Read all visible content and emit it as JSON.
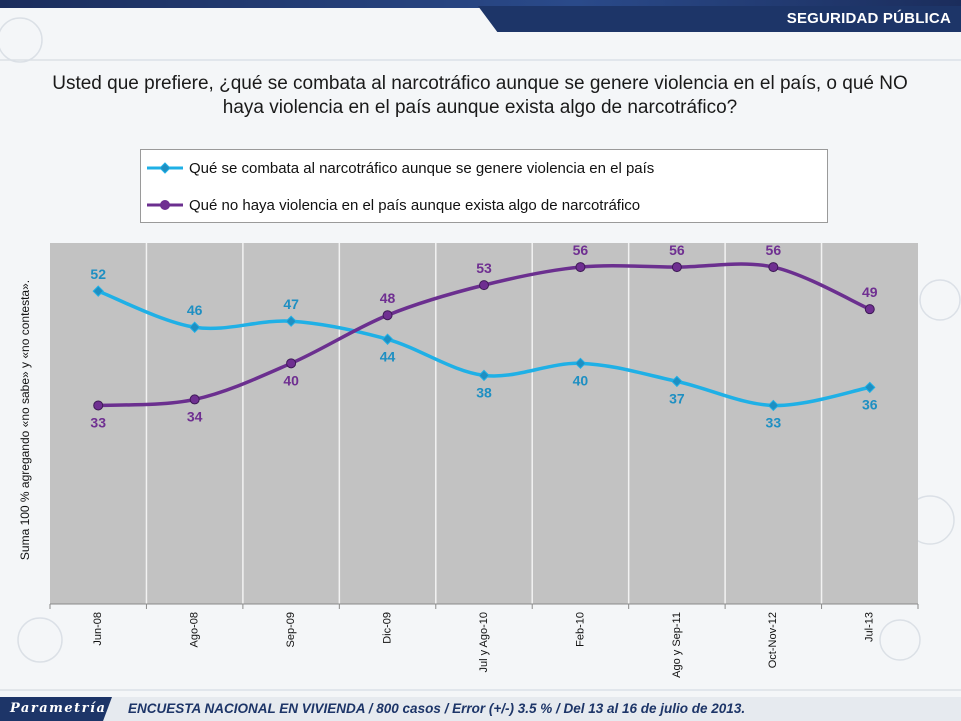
{
  "header": {
    "section_label": "SEGURIDAD PÚBLICA"
  },
  "question": "Usted que prefiere, ¿qué se combata al narcotráfico aunque se genere violencia en el país, o qué NO haya violencia en el país aunque exista algo de narcotráfico?",
  "footer": {
    "logo_text": "Parametría",
    "note": "ENCUESTA NACIONAL EN VIVIENDA / 800 casos / Error (+/-) 3.5 % / Del 13 al 16 de julio de 2013."
  },
  "colors": {
    "series_1": "#1fb0e6",
    "series_1_marker": "#1e8fc2",
    "series_2": "#6b2f8f",
    "series_2_marker": "#6f2f91",
    "plot_bg": "#c2c2c2",
    "brand": "#1d3568"
  },
  "icons": {
    "series_1_marker": "diamond-marker-icon",
    "series_2_marker": "circle-marker-icon"
  },
  "chart_data": {
    "type": "line",
    "title": "",
    "xlabel": "",
    "ylabel": "Suma 100 % agregando «no sabe» y «no contesta».",
    "categories": [
      "Jun-08",
      "Ago-08",
      "Sep-09",
      "Dic-09",
      "Jul y Ago-10",
      "Feb-10",
      "Ago y Sep-11",
      "Oct-Nov-12",
      "Jul-13"
    ],
    "ylim": [
      0,
      60
    ],
    "grid": "vertical",
    "legend": "top",
    "data_labels": true,
    "smooth": true,
    "series": [
      {
        "name": "Qué se combata al narcotráfico aunque se genere violencia en el país",
        "marker": "diamond",
        "values": [
          52,
          46,
          47,
          44,
          38,
          40,
          37,
          33,
          36
        ]
      },
      {
        "name": "Qué no haya violencia en el país aunque exista algo de narcotráfico",
        "marker": "circle",
        "values": [
          33,
          34,
          40,
          48,
          53,
          56,
          56,
          56,
          49
        ]
      }
    ]
  }
}
